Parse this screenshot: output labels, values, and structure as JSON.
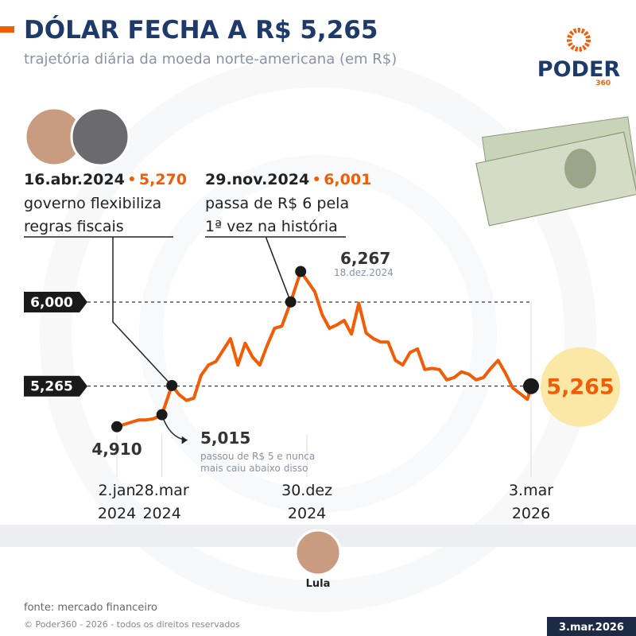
{
  "chart_data": {
    "type": "line",
    "title": "DÓLAR FECHA A R$ 5,265",
    "subtitle": "trajetória diária da moeda norte-americana (em R$)",
    "brand": "PODER",
    "brand_sub": "360",
    "color": "#f25c05",
    "x": [
      "2024-01-02",
      "2024-01-16",
      "2024-01-30",
      "2024-02-13",
      "2024-02-27",
      "2024-03-12",
      "2024-03-28",
      "2024-04-16",
      "2024-04-30",
      "2024-05-14",
      "2024-05-28",
      "2024-06-11",
      "2024-06-25",
      "2024-07-09",
      "2024-07-23",
      "2024-08-06",
      "2024-08-20",
      "2024-09-03",
      "2024-09-17",
      "2024-10-01",
      "2024-10-15",
      "2024-10-29",
      "2024-11-12",
      "2024-11-29",
      "2024-12-18",
      "2024-12-30",
      "2025-01-14",
      "2025-01-28",
      "2025-02-11",
      "2025-02-25",
      "2025-03-11",
      "2025-03-25",
      "2025-04-08",
      "2025-04-22",
      "2025-05-06",
      "2025-05-20",
      "2025-06-03",
      "2025-06-17",
      "2025-07-01",
      "2025-07-15",
      "2025-07-29",
      "2025-08-12",
      "2025-08-26",
      "2025-09-09",
      "2025-09-23",
      "2025-10-07",
      "2025-10-21",
      "2025-11-04",
      "2025-11-18",
      "2025-12-02",
      "2025-12-16",
      "2025-12-30",
      "2026-01-13",
      "2026-01-27",
      "2026-02-10",
      "2026-02-24",
      "2026-03-03"
    ],
    "values": [
      4.91,
      4.93,
      4.95,
      4.97,
      4.97,
      4.98,
      5.015,
      5.27,
      5.19,
      5.14,
      5.16,
      5.36,
      5.45,
      5.48,
      5.58,
      5.68,
      5.45,
      5.64,
      5.52,
      5.45,
      5.62,
      5.77,
      5.79,
      6.001,
      6.267,
      6.19,
      6.09,
      5.89,
      5.77,
      5.8,
      5.84,
      5.72,
      5.99,
      5.73,
      5.68,
      5.65,
      5.65,
      5.49,
      5.45,
      5.56,
      5.59,
      5.41,
      5.42,
      5.41,
      5.32,
      5.34,
      5.39,
      5.37,
      5.32,
      5.34,
      5.42,
      5.49,
      5.38,
      5.25,
      5.2,
      5.15,
      5.265
    ],
    "xlim": [
      "2024-01-02",
      "2026-03-03"
    ],
    "ylim": [
      4.7,
      6.5
    ],
    "yticks": [
      {
        "value": 6,
        "label": "6,000"
      },
      {
        "value": 5.265,
        "label": "5,265"
      }
    ],
    "xticks": [
      {
        "value": "2024-01-02",
        "label": "2.jan",
        "year": "2024"
      },
      {
        "value": "2024-03-28",
        "label": "28.mar",
        "year": "2024"
      },
      {
        "value": "2024-12-30",
        "label": "30.dez",
        "year": "2024"
      },
      {
        "value": "2026-03-03",
        "label": "3.mar",
        "year": "2026"
      }
    ],
    "annotations": [
      {
        "x": "2024-01-02",
        "value": 4.91,
        "label": "4,910"
      },
      {
        "x": "2024-03-28",
        "value": 5.015,
        "label": "5,015",
        "note": [
          "passou de R$ 5 e nunca",
          "mais caiu abaixo disso"
        ]
      },
      {
        "x": "2024-04-16",
        "value": 5.27,
        "label": "5,270",
        "date_label": "16.abr.2024",
        "lines": [
          "governo flexibiliza",
          "regras fiscais"
        ]
      },
      {
        "x": "2024-11-29",
        "value": 6.001,
        "label": "6,001",
        "date_label": "29.nov.2024",
        "lines": [
          "passa de R$ 6 pela",
          "1ª vez na história"
        ]
      },
      {
        "x": "2024-12-18",
        "value": 6.267,
        "label": "6,267",
        "note": [
          "18.dez.2024"
        ]
      },
      {
        "x": "2026-03-03",
        "value": 5.265,
        "label": "5,265"
      }
    ],
    "president": "Lula",
    "source": "fonte: mercado financeiro",
    "copyright": "© Poder360 - 2026 - todos os direitos reservados",
    "date": "3.mar.2026"
  }
}
